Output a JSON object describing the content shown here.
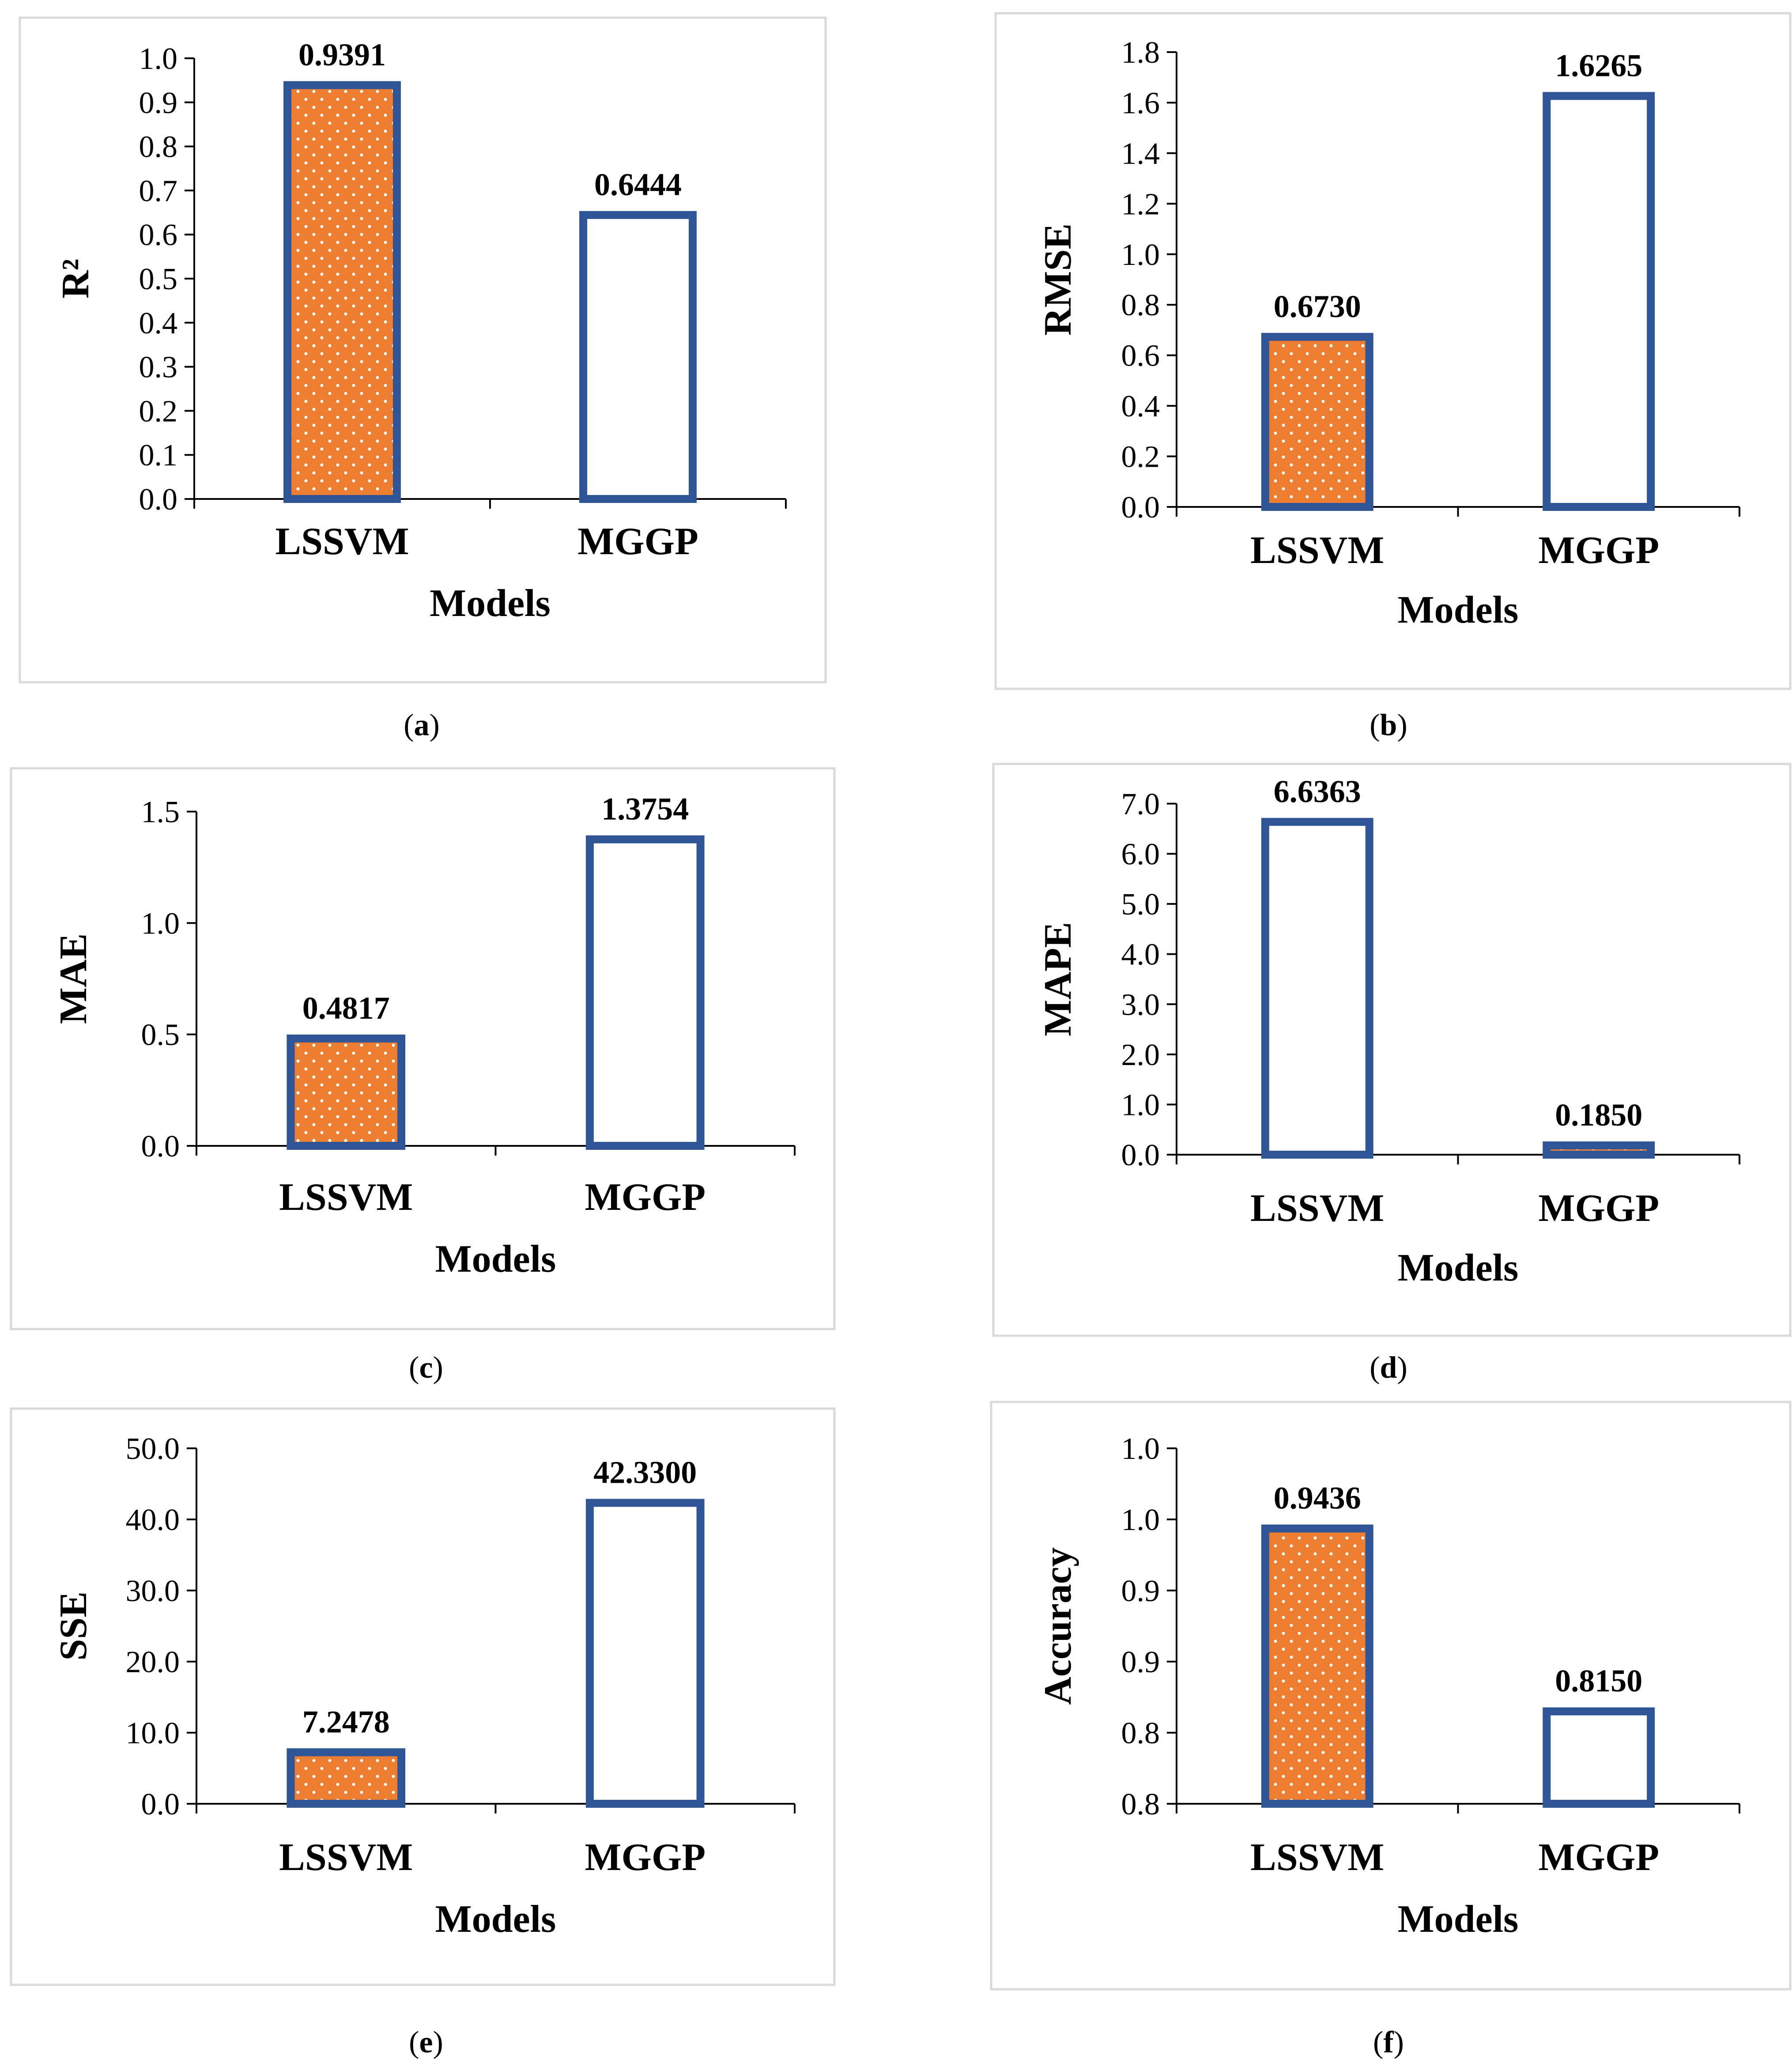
{
  "figure": {
    "colors": {
      "bar_outline": "#2f5597",
      "fill_orange": "#ed7d31",
      "fill_white": "#ffffff",
      "dot": "#ffffff",
      "panel_border": "#d9d9d9"
    }
  },
  "chart_data": [
    {
      "id": "a",
      "caption": "a",
      "type": "bar",
      "title": "",
      "xlabel": "Models",
      "ylabel": "R²",
      "categories": [
        "LSSVM",
        "MGGP"
      ],
      "values": [
        0.9391,
        0.6444
      ],
      "data_labels": [
        "0.9391",
        "0.6444"
      ],
      "fills": [
        "orange-dotted",
        "white"
      ],
      "ylim": [
        0,
        1.0
      ],
      "yticks": [
        "0.0",
        "0.1",
        "0.2",
        "0.3",
        "0.4",
        "0.5",
        "0.6",
        "0.7",
        "0.8",
        "0.9",
        "1.0"
      ],
      "grid": false,
      "legend": "none"
    },
    {
      "id": "b",
      "caption": "b",
      "type": "bar",
      "title": "",
      "xlabel": "Models",
      "ylabel": "RMSE",
      "categories": [
        "LSSVM",
        "MGGP"
      ],
      "values": [
        0.673,
        1.6265
      ],
      "data_labels": [
        "0.6730",
        "1.6265"
      ],
      "fills": [
        "orange-dotted",
        "white"
      ],
      "ylim": [
        0,
        1.8
      ],
      "yticks": [
        "0.0",
        "0.2",
        "0.4",
        "0.6",
        "0.8",
        "1.0",
        "1.2",
        "1.4",
        "1.6",
        "1.8"
      ],
      "grid": false,
      "legend": "none"
    },
    {
      "id": "c",
      "caption": "c",
      "type": "bar",
      "title": "",
      "xlabel": "Models",
      "ylabel": "MAE",
      "categories": [
        "LSSVM",
        "MGGP"
      ],
      "values": [
        0.4817,
        1.3754
      ],
      "data_labels": [
        "0.4817",
        "1.3754"
      ],
      "fills": [
        "orange-dotted",
        "white"
      ],
      "ylim": [
        0,
        1.5
      ],
      "yticks": [
        "0.0",
        "0.5",
        "1.0",
        "1.5"
      ],
      "grid": false,
      "legend": "none"
    },
    {
      "id": "d",
      "caption": "d",
      "type": "bar",
      "title": "",
      "xlabel": "Models",
      "ylabel": "MAPE",
      "categories": [
        "LSSVM",
        "MGGP"
      ],
      "values": [
        6.6363,
        0.185
      ],
      "data_labels": [
        "6.6363",
        "0.1850"
      ],
      "fills": [
        "white",
        "orange-dotted"
      ],
      "ylim": [
        0,
        7.0
      ],
      "yticks": [
        "0.0",
        "1.0",
        "2.0",
        "3.0",
        "4.0",
        "5.0",
        "6.0",
        "7.0"
      ],
      "grid": false,
      "legend": "none"
    },
    {
      "id": "e",
      "caption": "e",
      "type": "bar",
      "title": "",
      "xlabel": "Models",
      "ylabel": "SSE",
      "categories": [
        "LSSVM",
        "MGGP"
      ],
      "values": [
        7.2478,
        42.33
      ],
      "data_labels": [
        "7.2478",
        "42.3300"
      ],
      "fills": [
        "orange-dotted",
        "white"
      ],
      "ylim": [
        0,
        50.0
      ],
      "yticks": [
        "0.0",
        "10.0",
        "20.0",
        "30.0",
        "40.0",
        "50.0"
      ],
      "grid": false,
      "legend": "none"
    },
    {
      "id": "f",
      "caption": "f",
      "type": "bar",
      "title": "",
      "xlabel": "Models",
      "ylabel": "Accuracy",
      "categories": [
        "LSSVM",
        "MGGP"
      ],
      "values": [
        0.9436,
        0.815
      ],
      "data_labels": [
        "0.9436",
        "0.8150"
      ],
      "fills": [
        "orange-dotted",
        "white"
      ],
      "ylim": [
        0.75,
        1.0
      ],
      "yticks": [
        "0.8",
        "0.8",
        "0.9",
        "0.9",
        "1.0",
        "1.0"
      ],
      "grid": false,
      "legend": "none"
    }
  ]
}
